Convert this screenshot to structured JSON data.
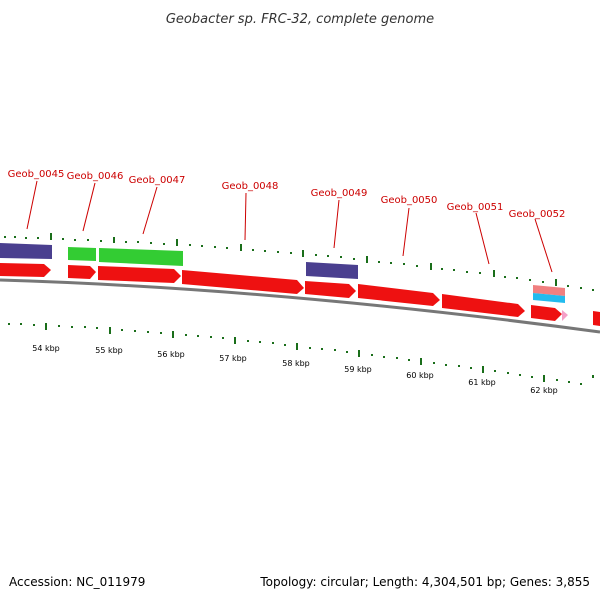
{
  "title": "Geobacter sp. FRC-32, complete genome",
  "footer": {
    "accession": "Accession: NC_011979",
    "topology": "Topology: circular; Length: 4,304,501 bp; Genes: 3,855"
  },
  "colors": {
    "forward_gene": "#ee1111",
    "reverse_gene_blue": "#4a3f8f",
    "reverse_gene_green": "#33cc33",
    "rna_pink": "#f08080",
    "rna_cyan": "#22bbee",
    "label": "#cc0000",
    "tick": "#1a6e1a",
    "backbone": "#777777"
  },
  "gene_labels": [
    "Geob_0045",
    "Geob_0046",
    "Geob_0047",
    "Geob_0048",
    "Geob_0049",
    "Geob_0050",
    "Geob_0051",
    "Geob_0052"
  ],
  "kbp_labels": [
    "54 kbp",
    "55 kbp",
    "56 kbp",
    "57 kbp",
    "58 kbp",
    "59 kbp",
    "60 kbp",
    "61 kbp",
    "62 kbp"
  ]
}
